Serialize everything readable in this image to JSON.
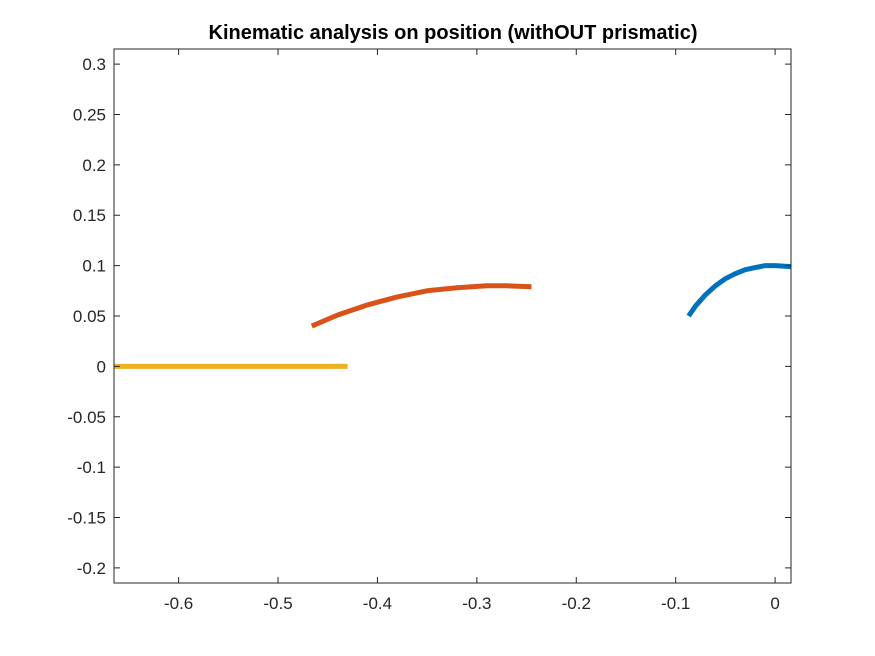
{
  "chart_data": {
    "type": "line",
    "title": "Kinematic analysis on position (withOUT prismatic)",
    "xlabel": "",
    "ylabel": "",
    "xlim": [
      -0.665,
      0.016
    ],
    "ylim": [
      -0.215,
      0.315
    ],
    "xticks": [
      -0.6,
      -0.5,
      -0.4,
      -0.3,
      -0.2,
      -0.1,
      0
    ],
    "xtick_labels": [
      "-0.6",
      "-0.5",
      "-0.4",
      "-0.3",
      "-0.2",
      "-0.1",
      "0"
    ],
    "yticks": [
      0.3,
      0.25,
      0.2,
      0.15,
      0.1,
      0.05,
      0,
      -0.05,
      -0.1,
      -0.15,
      -0.2
    ],
    "ytick_labels": [
      "0.3",
      "0.25",
      "0.2",
      "0.15",
      "0.1",
      "0.05",
      "0",
      "-0.05",
      "-0.1",
      "-0.15",
      "-0.2"
    ],
    "grid": false,
    "legend": "none",
    "series": [
      {
        "color": "#0072BD",
        "x": [
          -0.087,
          -0.08,
          -0.07,
          -0.06,
          -0.05,
          -0.04,
          -0.03,
          -0.02,
          -0.01,
          0,
          0.016
        ],
        "y": [
          0.05,
          0.06,
          0.071,
          0.08,
          0.087,
          0.092,
          0.096,
          0.098,
          0.1,
          0.1,
          0.099
        ]
      },
      {
        "color": "#D95319",
        "x": [
          -0.466,
          -0.44,
          -0.41,
          -0.38,
          -0.35,
          -0.32,
          -0.29,
          -0.27,
          -0.245
        ],
        "y": [
          0.04,
          0.051,
          0.061,
          0.069,
          0.075,
          0.078,
          0.08,
          0.08,
          0.079
        ]
      },
      {
        "color": "#EDB120",
        "x": [
          -0.665,
          -0.43
        ],
        "y": [
          0,
          0
        ]
      }
    ]
  }
}
